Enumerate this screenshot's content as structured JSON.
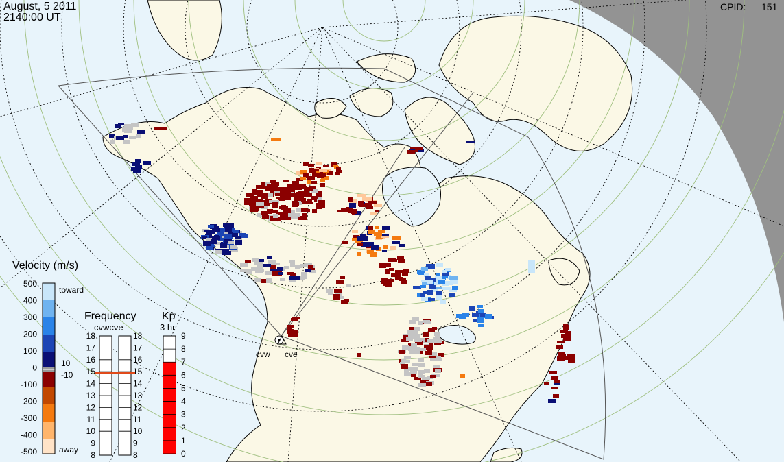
{
  "header": {
    "date": "August, 5 2011",
    "time": "2140:00 UT",
    "cpid_label": "CPID:",
    "cpid_value": "151"
  },
  "radars": [
    {
      "name": "cvw"
    },
    {
      "name": "cve"
    }
  ],
  "velocity_scale": {
    "title": "Velocity (m/s)",
    "ticks": [
      "500",
      "400",
      "300",
      "200",
      "100",
      "0",
      "-100",
      "-200",
      "-300",
      "-400",
      "-500"
    ],
    "toward_label": "toward",
    "away_label": "away",
    "gs_upper": "10",
    "gs_lower": "-10",
    "colors": [
      "#ffe3c7",
      "#ffb56b",
      "#f47a0f",
      "#c24800",
      "#8b0000",
      "#9a9a9a",
      "#0a0f75",
      "#1c45b5",
      "#2a83e8",
      "#6fb3f0",
      "#c8e6fa"
    ]
  },
  "frequency": {
    "title": "Frequency",
    "subtitle": "cvwcve",
    "ticks": [
      "18",
      "17",
      "16",
      "15",
      "14",
      "13",
      "12",
      "11",
      "10",
      "9",
      "8"
    ],
    "cvw_mhz": 14.9,
    "cve_mhz": 14.9,
    "marker_color": "#e04a1a"
  },
  "kp": {
    "title": "Kp",
    "subtitle": "3 hr",
    "ticks": [
      "9",
      "8",
      "7",
      "6",
      "5",
      "4",
      "3",
      "2",
      "1",
      "0"
    ],
    "value": 7,
    "fill_color": "#ff0000"
  },
  "colors": {
    "ocean": "#e8f4fb",
    "land": "#fbf8e6",
    "night": "#939393",
    "coast": "#000000",
    "grid_lat": "#9fbf7f",
    "grid_dotted": "#000000"
  }
}
